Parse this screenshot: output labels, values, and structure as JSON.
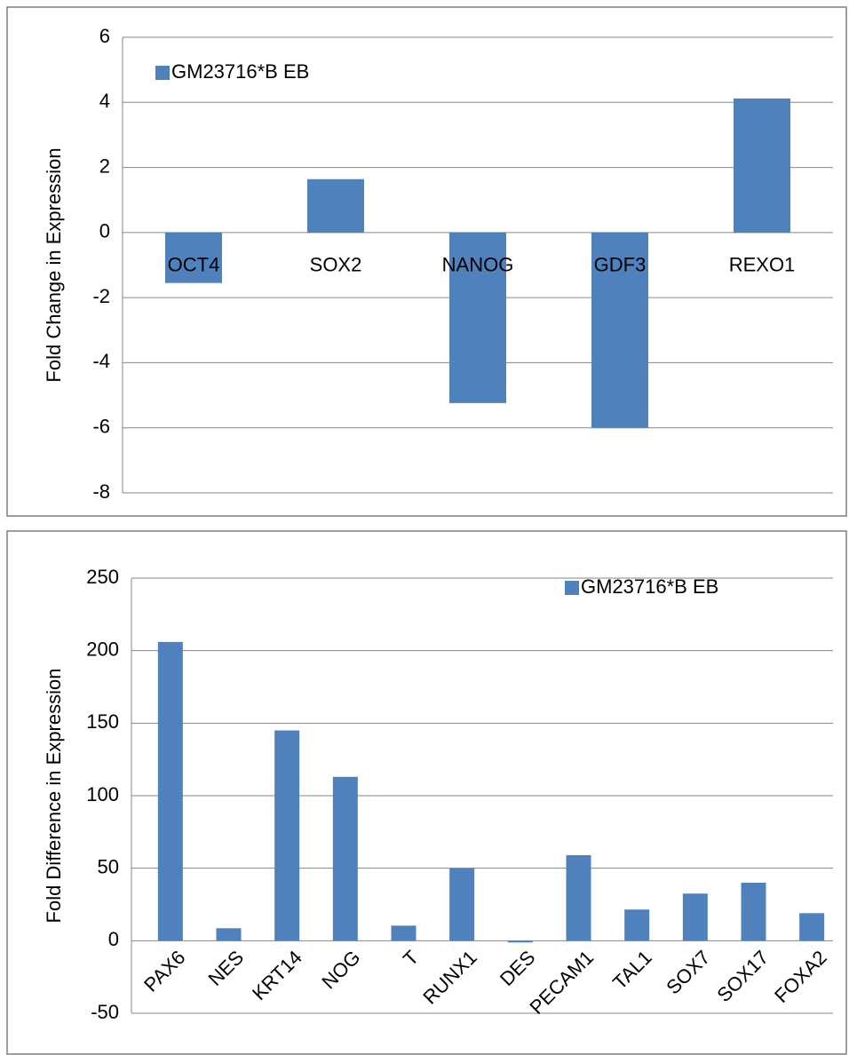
{
  "chart_data": [
    {
      "type": "bar",
      "y_label": "Fold Change in Expression",
      "categories": [
        "OCT4",
        "SOX2",
        "NANOG",
        "GDF3",
        "REXO1"
      ],
      "series": [
        {
          "name": "GM23716*B EB",
          "color": "#4f81bd",
          "values": [
            -1.55,
            1.64,
            -5.24,
            -6.0,
            4.12
          ]
        }
      ],
      "ylim": [
        -8,
        6
      ],
      "yticks": [
        -8,
        -6,
        -4,
        -2,
        0,
        2,
        4,
        6
      ],
      "grid": true,
      "legend": "top-left"
    },
    {
      "type": "bar",
      "y_label": "Fold Difference in Expression",
      "categories": [
        "PAX6",
        "NES",
        "KRT14",
        "NOG",
        "T",
        "RUNX1",
        "DES",
        "PECAM1",
        "TAL1",
        "SOX7",
        "SOX17",
        "FOXA2"
      ],
      "series": [
        {
          "name": "GM23716*B EB",
          "color": "#4f81bd",
          "values": [
            206,
            8.6,
            145,
            113,
            10.4,
            50,
            -1.2,
            59,
            21.5,
            32.5,
            40,
            19
          ]
        }
      ],
      "ylim": [
        -50,
        250
      ],
      "yticks": [
        -50,
        0,
        50,
        100,
        150,
        200,
        250
      ],
      "grid": true,
      "legend": "top-right"
    }
  ]
}
